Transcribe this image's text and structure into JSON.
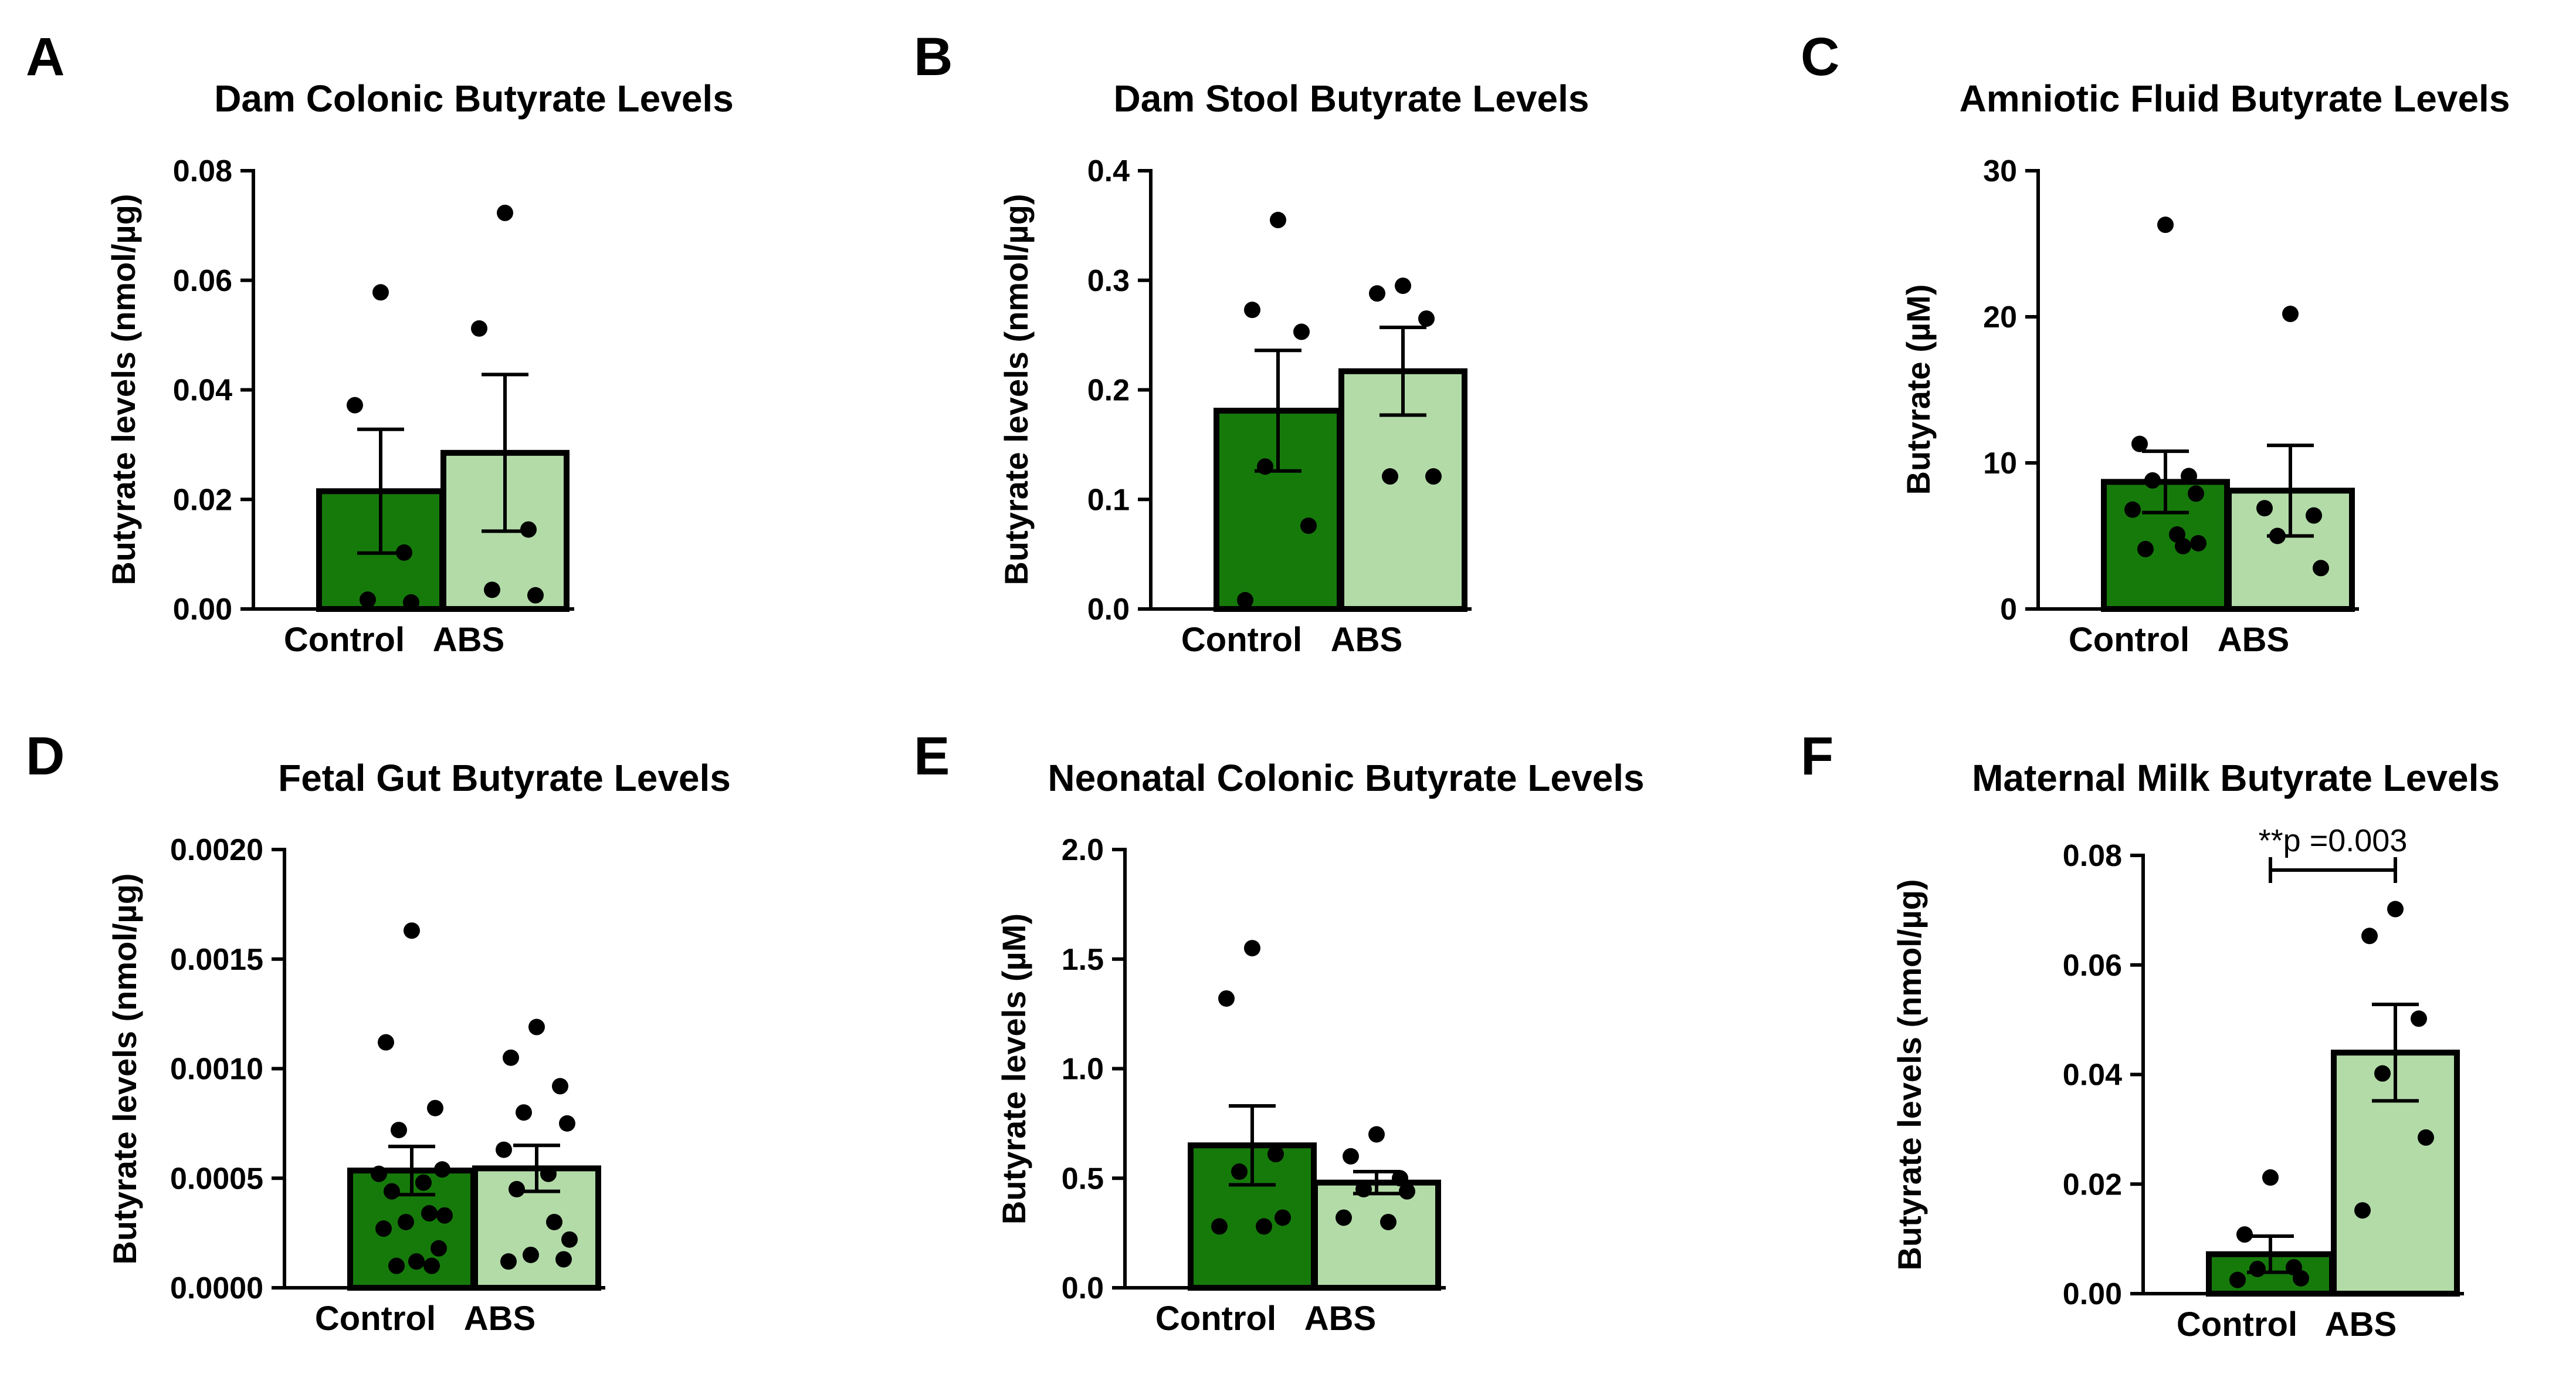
{
  "colors": {
    "control": "#167a0b",
    "abs": "#b3dba8",
    "stroke": "#000000"
  },
  "chart_data": [
    {
      "type": "bar",
      "panel": "A",
      "title": "Dam Colonic Butyrate Levels",
      "xlabel": "",
      "ylabel": "Butyrate levels (nmol/µg)",
      "categories": [
        "Control",
        "ABS"
      ],
      "values": [
        0.0215,
        0.0285
      ],
      "sem": [
        0.0113,
        0.0143
      ],
      "points": [
        [
          0.0578,
          0.0372,
          0.0103,
          0.0017,
          0.0012
        ],
        [
          0.0723,
          0.0512,
          0.0145,
          0.0035,
          0.0025
        ]
      ],
      "ylim": [
        0,
        0.08
      ],
      "yticks": [
        "0.00",
        "0.02",
        "0.04",
        "0.06",
        "0.08"
      ],
      "grid": false
    },
    {
      "type": "bar",
      "panel": "B",
      "title": "Dam Stool Butyrate Levels",
      "xlabel": "",
      "ylabel": "Butyrate levels (nmol/µg)",
      "categories": [
        "Control",
        "ABS"
      ],
      "values": [
        0.181,
        0.217
      ],
      "sem": [
        0.055,
        0.04
      ],
      "points": [
        [
          0.355,
          0.273,
          0.253,
          0.13,
          0.076,
          0.008
        ],
        [
          0.295,
          0.288,
          0.265,
          0.121,
          0.121
        ]
      ],
      "ylim": [
        0,
        0.4
      ],
      "yticks": [
        "0.0",
        "0.1",
        "0.2",
        "0.3",
        "0.4"
      ],
      "grid": false
    },
    {
      "type": "bar",
      "panel": "C",
      "title": "Amniotic Fluid Butyrate Levels",
      "xlabel": "",
      "ylabel": "Butyrate (µM)",
      "categories": [
        "Control",
        "ABS"
      ],
      "values": [
        8.7,
        8.1
      ],
      "sem": [
        2.1,
        3.1
      ],
      "points": [
        [
          26.3,
          11.3,
          9.1,
          8.8,
          7.9,
          6.8,
          5.1,
          4.1,
          4.3,
          4.5
        ],
        [
          20.2,
          6.9,
          6.4,
          5.0,
          2.8
        ]
      ],
      "ylim": [
        0,
        30
      ],
      "yticks": [
        "0",
        "10",
        "20",
        "30"
      ],
      "grid": false
    },
    {
      "type": "bar",
      "panel": "D",
      "title": "Fetal Gut Butyrate Levels",
      "xlabel": "",
      "ylabel": "Butyrate levels (nmol/µg)",
      "categories": [
        "Control",
        "ABS"
      ],
      "values": [
        0.000535,
        0.000545
      ],
      "sem": [
        0.00011,
        0.000105
      ],
      "points": [
        [
          0.00163,
          0.00112,
          0.00082,
          0.00072,
          0.00054,
          0.00052,
          0.00048,
          0.00044,
          0.00034,
          0.00033,
          0.0003,
          0.00027,
          0.00018,
          0.00012,
          0.0001,
          0.0001
        ],
        [
          0.00119,
          0.00105,
          0.00092,
          0.0008,
          0.00075,
          0.00063,
          0.00052,
          0.00045,
          0.0003,
          0.00022,
          0.00015,
          0.00012,
          0.00013
        ]
      ],
      "ylim": [
        0,
        0.002
      ],
      "yticks": [
        "0.0000",
        "0.0005",
        "0.0010",
        "0.0015",
        "0.0020"
      ],
      "grid": false
    },
    {
      "type": "bar",
      "panel": "E",
      "title": "Neonatal Colonic Butyrate Levels",
      "xlabel": "",
      "ylabel": "Butyrate levels (µM)",
      "categories": [
        "Control",
        "ABS"
      ],
      "values": [
        0.65,
        0.48
      ],
      "sem": [
        0.18,
        0.05
      ],
      "points": [
        [
          1.55,
          1.32,
          0.61,
          0.53,
          0.32,
          0.28,
          0.28
        ],
        [
          0.7,
          0.6,
          0.5,
          0.45,
          0.44,
          0.32,
          0.3
        ]
      ],
      "ylim": [
        0,
        2.0
      ],
      "yticks": [
        "0.0",
        "0.5",
        "1.0",
        "1.5",
        "2.0"
      ],
      "grid": false
    },
    {
      "type": "bar",
      "panel": "F",
      "title": "Maternal Milk Butyrate Levels",
      "xlabel": "",
      "ylabel": "Butyrate levels (nmol/µg)",
      "categories": [
        "Control",
        "ABS"
      ],
      "values": [
        0.0072,
        0.044
      ],
      "sem": [
        0.0033,
        0.0088
      ],
      "points": [
        [
          0.0212,
          0.0108,
          0.0048,
          0.0045,
          0.0028,
          0.0025
        ],
        [
          0.0702,
          0.0653,
          0.0502,
          0.0402,
          0.0285,
          0.0152
        ]
      ],
      "ylim": [
        0,
        0.08
      ],
      "yticks": [
        "0.00",
        "0.02",
        "0.04",
        "0.06",
        "0.08"
      ],
      "grid": false,
      "annotation": "**p =0.003"
    }
  ]
}
